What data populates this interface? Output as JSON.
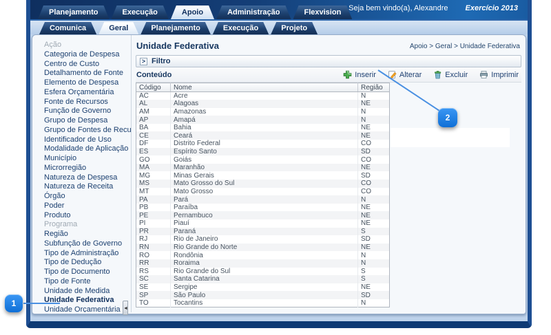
{
  "header": {
    "tabs": [
      {
        "label": "Planejamento"
      },
      {
        "label": "Execução"
      },
      {
        "label": "Apoio",
        "active": true
      },
      {
        "label": "Administração"
      },
      {
        "label": "Flexvision"
      }
    ],
    "welcome": "Seja bem vindo(a), Alexandre",
    "exercise": "Exercício 2013"
  },
  "subtabs": [
    {
      "label": "Comunica"
    },
    {
      "label": "Geral",
      "active": true
    },
    {
      "label": "Planejamento"
    },
    {
      "label": "Execução"
    },
    {
      "label": "Projeto"
    }
  ],
  "sidebar": [
    {
      "label": "Ação",
      "state": "disabled"
    },
    {
      "label": "Categoria de Despesa"
    },
    {
      "label": "Centro de Custo"
    },
    {
      "label": "Detalhamento de Fonte"
    },
    {
      "label": "Elemento de Despesa"
    },
    {
      "label": "Esfera Orçamentária"
    },
    {
      "label": "Fonte de Recursos"
    },
    {
      "label": "Função de Governo"
    },
    {
      "label": "Grupo de Despesa"
    },
    {
      "label": "Grupo de Fontes de Recursos"
    },
    {
      "label": "Identificador de Uso"
    },
    {
      "label": "Modalidade de Aplicação"
    },
    {
      "label": "Município"
    },
    {
      "label": "Microrregião"
    },
    {
      "label": "Natureza de Despesa"
    },
    {
      "label": "Natureza de Receita"
    },
    {
      "label": "Órgão"
    },
    {
      "label": "Poder"
    },
    {
      "label": "Produto"
    },
    {
      "label": "Programa",
      "state": "disabled"
    },
    {
      "label": "Região"
    },
    {
      "label": "Subfunção de Governo"
    },
    {
      "label": "Tipo de Administração"
    },
    {
      "label": "Tipo de Dedução"
    },
    {
      "label": "Tipo de Documento"
    },
    {
      "label": "Tipo de Fonte"
    },
    {
      "label": "Unidade de Medida"
    },
    {
      "label": "Unidade Federativa",
      "state": "selected"
    },
    {
      "label": "Unidade Orçamentária"
    }
  ],
  "content": {
    "title": "Unidade Federativa",
    "breadcrumb": "Apoio > Geral > Unidade Federativa",
    "filter": {
      "label": "Filtro",
      "toggle_glyph": ">"
    },
    "section_label": "Conteúdo",
    "buttons": [
      {
        "label": "Inserir",
        "icon": "insert-plus-icon"
      },
      {
        "label": "Alterar",
        "icon": "edit-pencil-icon"
      },
      {
        "label": "Excluir",
        "icon": "delete-trash-icon"
      },
      {
        "label": "Imprimir",
        "icon": "print-icon"
      }
    ],
    "table": {
      "columns": [
        "Código",
        "Nome",
        "Região"
      ],
      "rows": [
        [
          "AC",
          "Acre",
          "N"
        ],
        [
          "AL",
          "Alagoas",
          "NE"
        ],
        [
          "AM",
          "Amazonas",
          "N"
        ],
        [
          "AP",
          "Amapá",
          "N"
        ],
        [
          "BA",
          "Bahia",
          "NE"
        ],
        [
          "CE",
          "Ceará",
          "NE"
        ],
        [
          "DF",
          "Distrito Federal",
          "CO"
        ],
        [
          "ES",
          "Espírito Santo",
          "SD"
        ],
        [
          "GO",
          "Goiás",
          "CO"
        ],
        [
          "MA",
          "Maranhão",
          "NE"
        ],
        [
          "MG",
          "Minas Gerais",
          "SD"
        ],
        [
          "MS",
          "Mato Grosso do Sul",
          "CO"
        ],
        [
          "MT",
          "Mato Grosso",
          "CO"
        ],
        [
          "PA",
          "Pará",
          "N"
        ],
        [
          "PB",
          "Paraíba",
          "NE"
        ],
        [
          "PE",
          "Pernambuco",
          "NE"
        ],
        [
          "PI",
          "Piauí",
          "NE"
        ],
        [
          "PR",
          "Paraná",
          "S"
        ],
        [
          "RJ",
          "Rio de Janeiro",
          "SD"
        ],
        [
          "RN",
          "Rio Grande do Norte",
          "NE"
        ],
        [
          "RO",
          "Rondônia",
          "N"
        ],
        [
          "RR",
          "Roraima",
          "N"
        ],
        [
          "RS",
          "Rio Grande do Sul",
          "S"
        ],
        [
          "SC",
          "Santa Catarina",
          "S"
        ],
        [
          "SE",
          "Sergipe",
          "NE"
        ],
        [
          "SP",
          "São Paulo",
          "SD"
        ],
        [
          "TO",
          "Tocantins",
          "N"
        ]
      ]
    }
  },
  "annotations": {
    "badges": [
      {
        "number": "1",
        "target": "sidebar-item-unidade-federativa"
      },
      {
        "number": "2",
        "target": "button-inserir"
      }
    ]
  },
  "colors": {
    "navy": "#16365f",
    "topbar_blue": "#1e6ab4",
    "callout_blue": "#1779e0",
    "connector_blue": "#4a90e2"
  }
}
